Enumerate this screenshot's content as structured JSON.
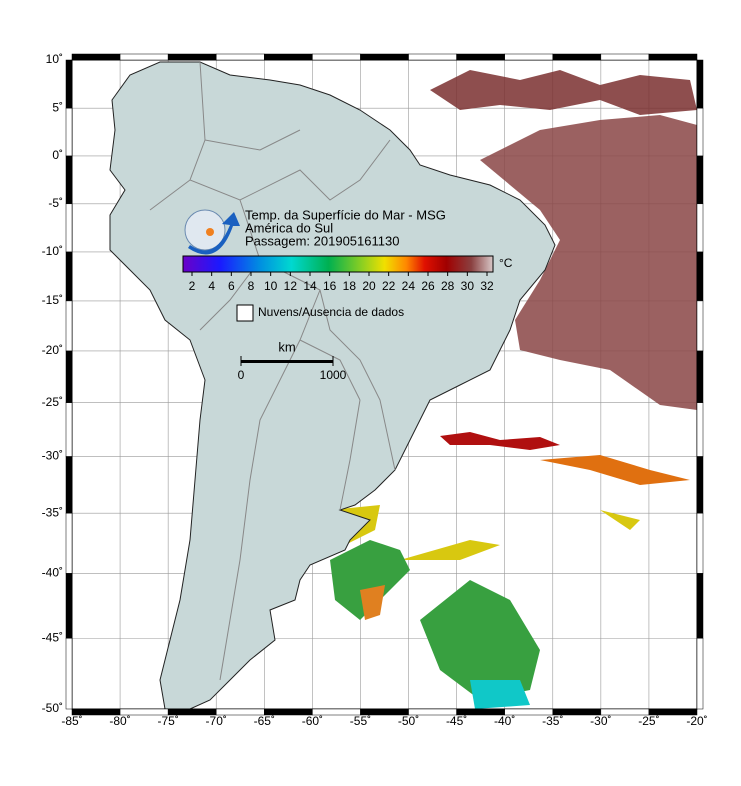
{
  "header": {
    "title": "Temp. da Superfície do Mar - MSG",
    "region": "América do Sul",
    "pass": "Passagem: 201905161130"
  },
  "colorbar": {
    "unit": "°C",
    "ticks": [
      2,
      4,
      6,
      8,
      10,
      12,
      14,
      16,
      18,
      20,
      22,
      24,
      26,
      28,
      30,
      32
    ]
  },
  "legend": {
    "no_data": "Nuvens/Ausencia de dados"
  },
  "scale_bar": {
    "unit": "km",
    "ticks": [
      0,
      1000
    ]
  },
  "axes": {
    "xticks": [
      {
        "value": -85,
        "label": "-85˚"
      },
      {
        "value": -80,
        "label": "-80˚"
      },
      {
        "value": -75,
        "label": "-75˚"
      },
      {
        "value": -70,
        "label": "-70˚"
      },
      {
        "value": -65,
        "label": "-65˚"
      },
      {
        "value": -60,
        "label": "-60˚"
      },
      {
        "value": -55,
        "label": "-55˚"
      },
      {
        "value": -50,
        "label": "-50˚"
      },
      {
        "value": -45,
        "label": "-45˚"
      },
      {
        "value": -40,
        "label": "-40˚"
      },
      {
        "value": -35,
        "label": "-35˚"
      },
      {
        "value": -30,
        "label": "-30˚"
      },
      {
        "value": -25,
        "label": "-25˚"
      },
      {
        "value": -20,
        "label": "-20˚"
      }
    ],
    "yticks": [
      {
        "value": 10,
        "label": "10˚"
      },
      {
        "value": 5,
        "label": "5˚"
      },
      {
        "value": 0,
        "label": "0˚"
      },
      {
        "value": -5,
        "label": "-5˚"
      },
      {
        "value": -10,
        "label": "-10˚"
      },
      {
        "value": -15,
        "label": "-15˚"
      },
      {
        "value": -20,
        "label": "-20˚"
      },
      {
        "value": -25,
        "label": "-25˚"
      },
      {
        "value": -30,
        "label": "-30˚"
      },
      {
        "value": -35,
        "label": "-35˚"
      },
      {
        "value": -40,
        "label": "-40˚"
      },
      {
        "value": -45,
        "label": "-45˚"
      },
      {
        "value": -50,
        "label": "-50˚"
      }
    ]
  }
}
